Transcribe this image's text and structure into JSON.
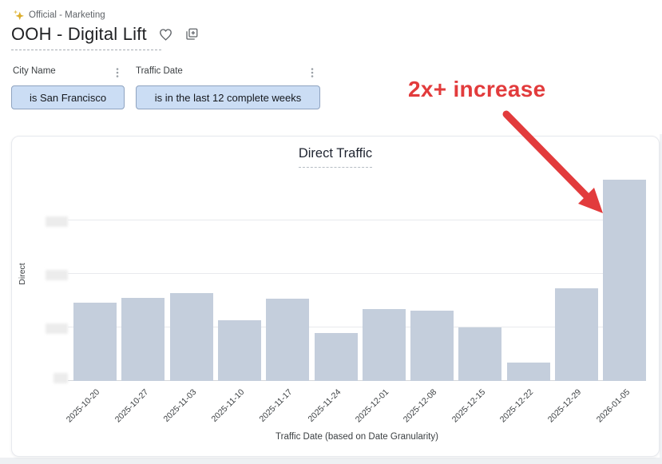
{
  "breadcrumb": {
    "icon": "sparkle-icon",
    "text": "Official - Marketing"
  },
  "title": {
    "text": "OOH - Digital Lift",
    "favorite_icon": "heart-outline-icon",
    "duplicate_icon": "copy-add-icon"
  },
  "filters": [
    {
      "label": "City Name",
      "menu_icon": "kebab-menu-icon",
      "chip": "is San Francisco"
    },
    {
      "label": "Traffic Date",
      "menu_icon": "kebab-menu-icon",
      "chip": "is in the last 12 complete weeks"
    }
  ],
  "annotation": {
    "text": "2x+ increase",
    "color": "#e23b3c",
    "points_to": "2026-01-05"
  },
  "chart_data": {
    "type": "bar",
    "title": "Direct Traffic",
    "xlabel": "Traffic Date (based on Date Granularity)",
    "ylabel": "Direct",
    "categories": [
      "2025-10-20",
      "2025-10-27",
      "2025-11-03",
      "2025-11-10",
      "2025-11-17",
      "2025-11-24",
      "2025-12-01",
      "2025-12-08",
      "2025-12-15",
      "2025-12-22",
      "2025-12-29",
      "2026-01-05"
    ],
    "values": [
      1.46,
      1.55,
      1.64,
      1.13,
      1.54,
      0.9,
      1.34,
      1.31,
      1.0,
      0.34,
      1.73,
      3.76
    ],
    "values_unit": "relative gridline units (numeric y tick labels are blurred/redacted in source image)",
    "y_tick_labels": [
      "redacted",
      "redacted",
      "redacted",
      "redacted"
    ],
    "ylim": [
      0,
      3.9
    ],
    "grid": "horizontal",
    "legend": "none",
    "bar_color": "#c4cedc"
  },
  "colors": {
    "annotation_red": "#e23b3c",
    "bar_fill": "#c4cedc",
    "chip_background": "#cbddf4",
    "chip_border": "#8fa3c0",
    "sparkle_gold": "#dcae2e",
    "gridline": "#e8eaed"
  }
}
